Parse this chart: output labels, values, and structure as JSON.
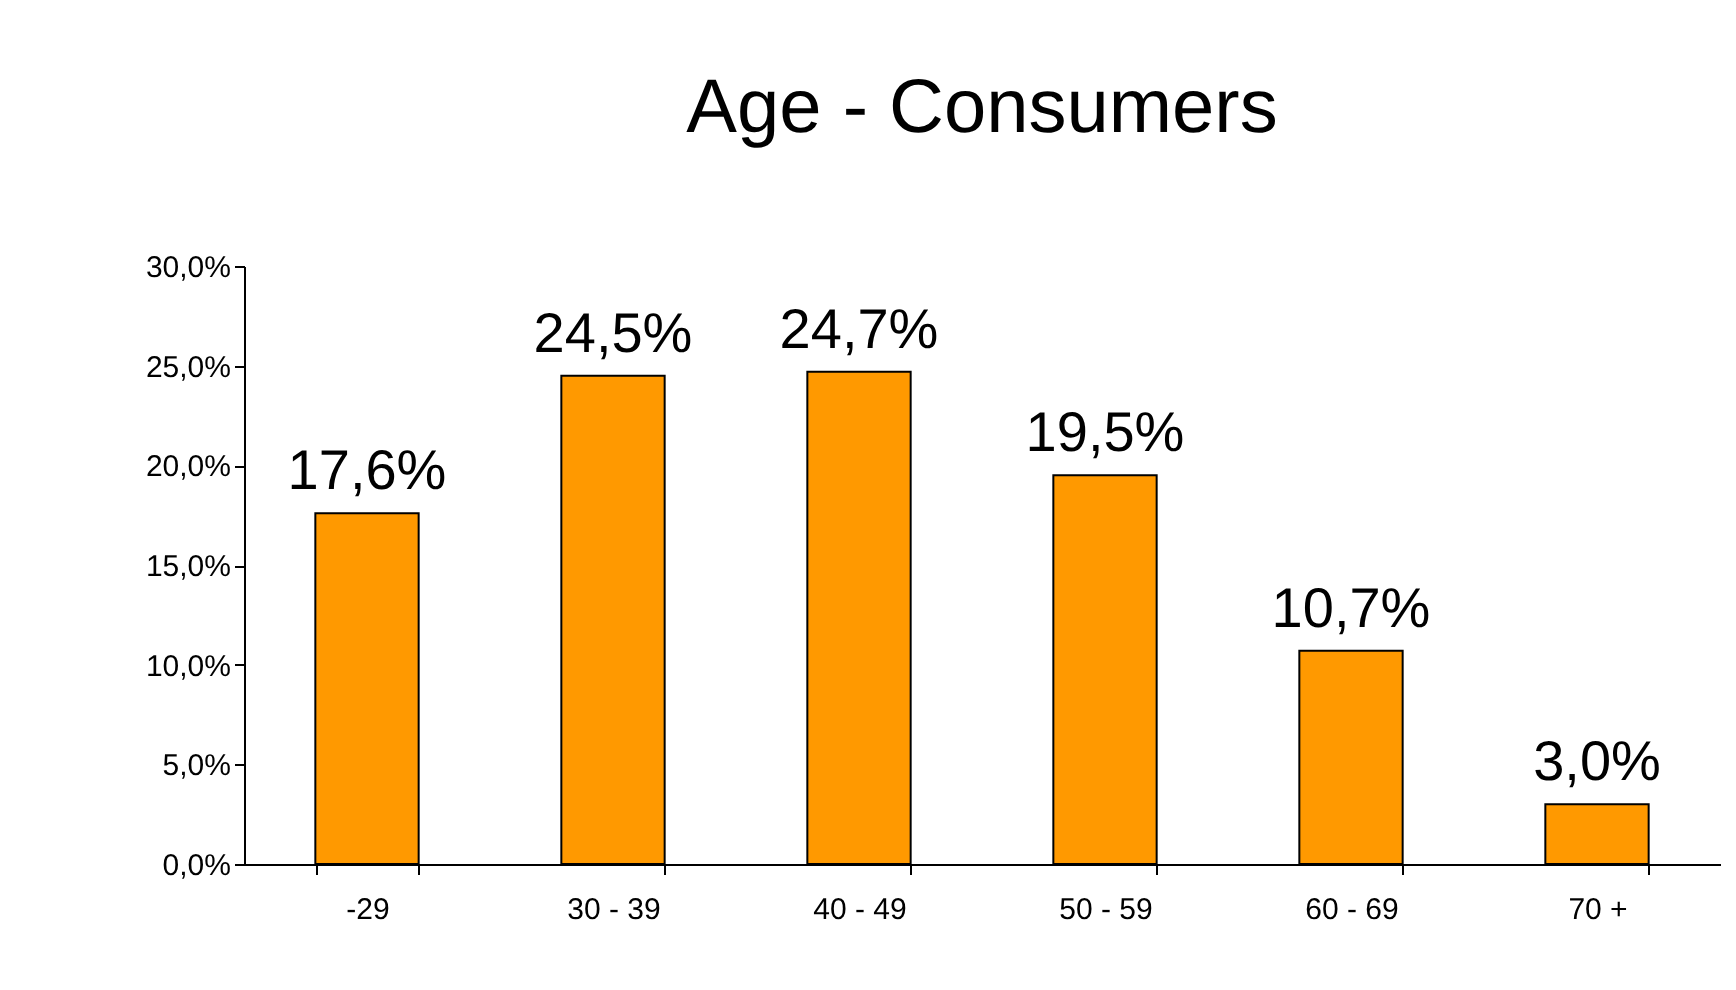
{
  "chart_data": {
    "type": "bar",
    "title": "Age - Consumers",
    "categories": [
      "-29",
      "30 - 39",
      "40 - 49",
      "50 - 59",
      "60 - 69",
      "70 +"
    ],
    "values": [
      17.6,
      24.5,
      24.7,
      19.5,
      10.7,
      3.0
    ],
    "value_labels": [
      "17,6%",
      "24,5%",
      "24,7%",
      "19,5%",
      "10,7%",
      "3,0%"
    ],
    "color": "#ff9900",
    "ylim": [
      0,
      30
    ],
    "yticks": [
      {
        "value": 0,
        "label": "0,0%"
      },
      {
        "value": 5,
        "label": "5,0%"
      },
      {
        "value": 10,
        "label": "10,0%"
      },
      {
        "value": 15,
        "label": "15,0%"
      },
      {
        "value": 20,
        "label": "20,0%"
      },
      {
        "value": 25,
        "label": "25,0%"
      },
      {
        "value": 30,
        "label": "30,0%"
      }
    ],
    "grid": false
  }
}
